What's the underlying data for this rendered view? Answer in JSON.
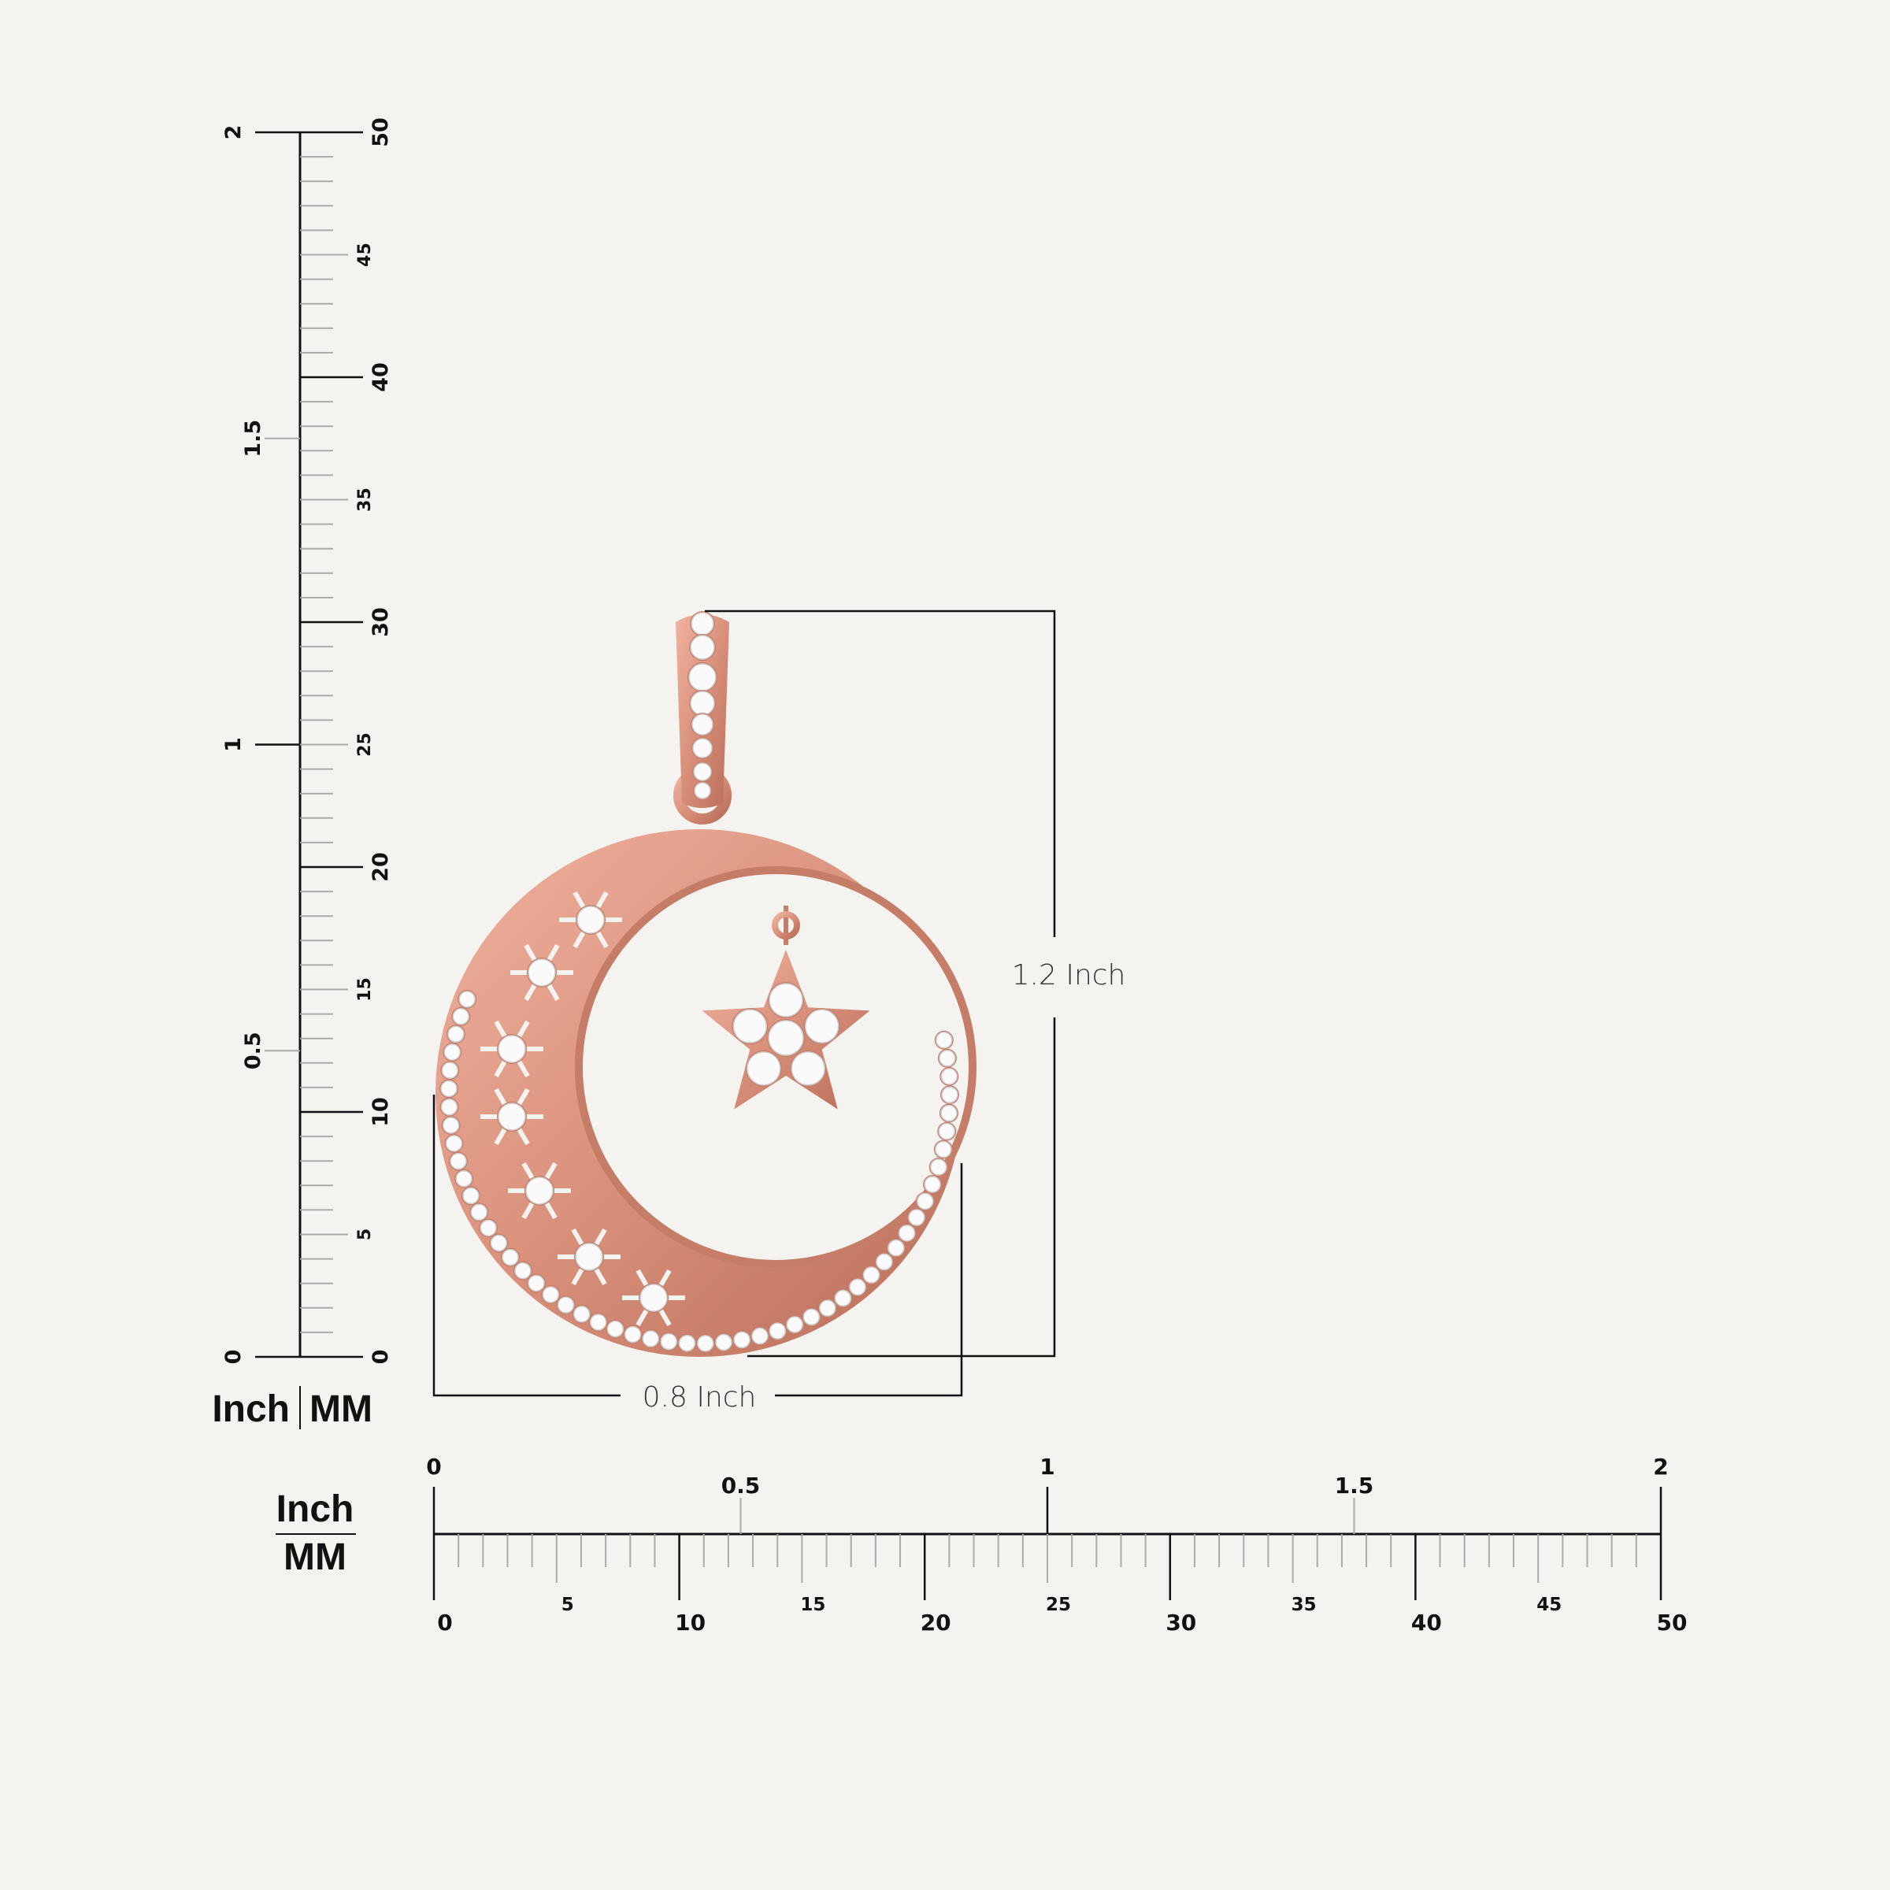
{
  "vertical_ruler": {
    "unit_label_inch": "Inch",
    "unit_label_mm": "MM",
    "inch_labels": [
      "0",
      "0.5",
      "1",
      "1.5",
      "2"
    ],
    "mm_labels": [
      "0",
      "5",
      "10",
      "15",
      "20",
      "25",
      "30",
      "35",
      "40",
      "45",
      "50"
    ]
  },
  "horizontal_ruler": {
    "unit_label_inch": "Inch",
    "unit_label_mm": "MM",
    "inch_labels": [
      "0",
      "0.5",
      "1",
      "1.5",
      "2"
    ],
    "mm_labels": [
      "0",
      "5",
      "10",
      "15",
      "20",
      "25",
      "30",
      "35",
      "40",
      "45",
      "50"
    ]
  },
  "dimensions": {
    "height": "1.2 Inch",
    "width": "0.8 Inch"
  },
  "product": {
    "name": "crescent-moon-star-pendant",
    "metal_color": "#d9907a",
    "stone_color": "#ffffff"
  }
}
